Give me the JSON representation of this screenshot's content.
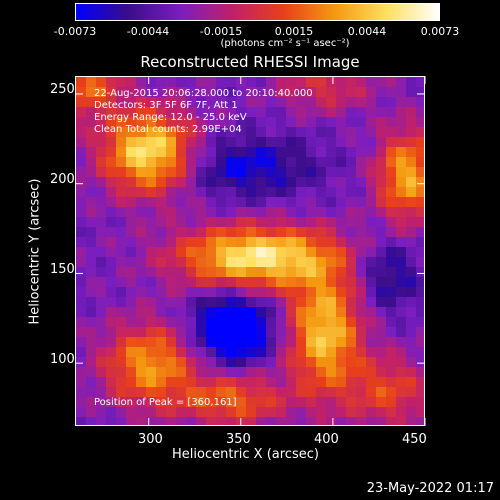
{
  "colors": {
    "background": "#000000",
    "colormap": [
      "#0000ff",
      "#3a0d8a",
      "#7a1ec0",
      "#c0206a",
      "#e8401a",
      "#f49a10",
      "#ffe060",
      "#ffffff"
    ]
  },
  "colorbar": {
    "tick_labels": [
      "-0.0073",
      "-0.0044",
      "-0.0015",
      "0.0015",
      "0.0044",
      "0.0073"
    ],
    "units": "(photons cm⁻² s⁻¹ asec⁻²)"
  },
  "chart_data": {
    "type": "heatmap",
    "title": "Reconstructed RHESSI Image",
    "xlabel": "Heliocentric X (arcsec)",
    "ylabel": "Heliocentric Y (arcsec)",
    "xlim": [
      260,
      450
    ],
    "ylim": [
      65,
      260
    ],
    "x_ticks": [
      "300",
      "350",
      "400",
      "450"
    ],
    "y_ticks": [
      "100",
      "150",
      "200",
      "250"
    ],
    "info_lines": [
      "22-Aug-2015 20:06:28.000 to 20:10:40.000",
      "Detectors: 3F 5F 6F 7F, Att 1",
      "Energy Range: 12.0 - 25.0 keV",
      "Clean     Total counts: 2.99E+04"
    ],
    "peak_text": "Position of Peak = [360,161]",
    "blobs": [
      {
        "x": 300,
        "y": 218,
        "sx": 18,
        "sy": 16,
        "amp": 1.0
      },
      {
        "x": 358,
        "y": 160,
        "sx": 30,
        "sy": 12,
        "amp": 1.0
      },
      {
        "x": 395,
        "y": 118,
        "sx": 14,
        "sy": 24,
        "amp": 0.85
      },
      {
        "x": 300,
        "y": 100,
        "sx": 18,
        "sy": 16,
        "amp": 0.7
      },
      {
        "x": 345,
        "y": 80,
        "sx": 20,
        "sy": 10,
        "amp": 0.55
      },
      {
        "x": 265,
        "y": 255,
        "sx": 14,
        "sy": 12,
        "amp": 0.55
      },
      {
        "x": 440,
        "y": 205,
        "sx": 12,
        "sy": 18,
        "amp": 0.75
      },
      {
        "x": 430,
        "y": 85,
        "sx": 16,
        "sy": 14,
        "amp": 0.45
      },
      {
        "x": 395,
        "y": 255,
        "sx": 18,
        "sy": 10,
        "amp": 0.35
      },
      {
        "x": 345,
        "y": 120,
        "sx": 14,
        "sy": 12,
        "amp": -0.9
      },
      {
        "x": 350,
        "y": 210,
        "sx": 28,
        "sy": 12,
        "amp": -0.4
      },
      {
        "x": 430,
        "y": 150,
        "sx": 12,
        "sy": 14,
        "amp": -0.35
      }
    ]
  },
  "footer": {
    "timestamp": "23-May-2022 01:17"
  }
}
